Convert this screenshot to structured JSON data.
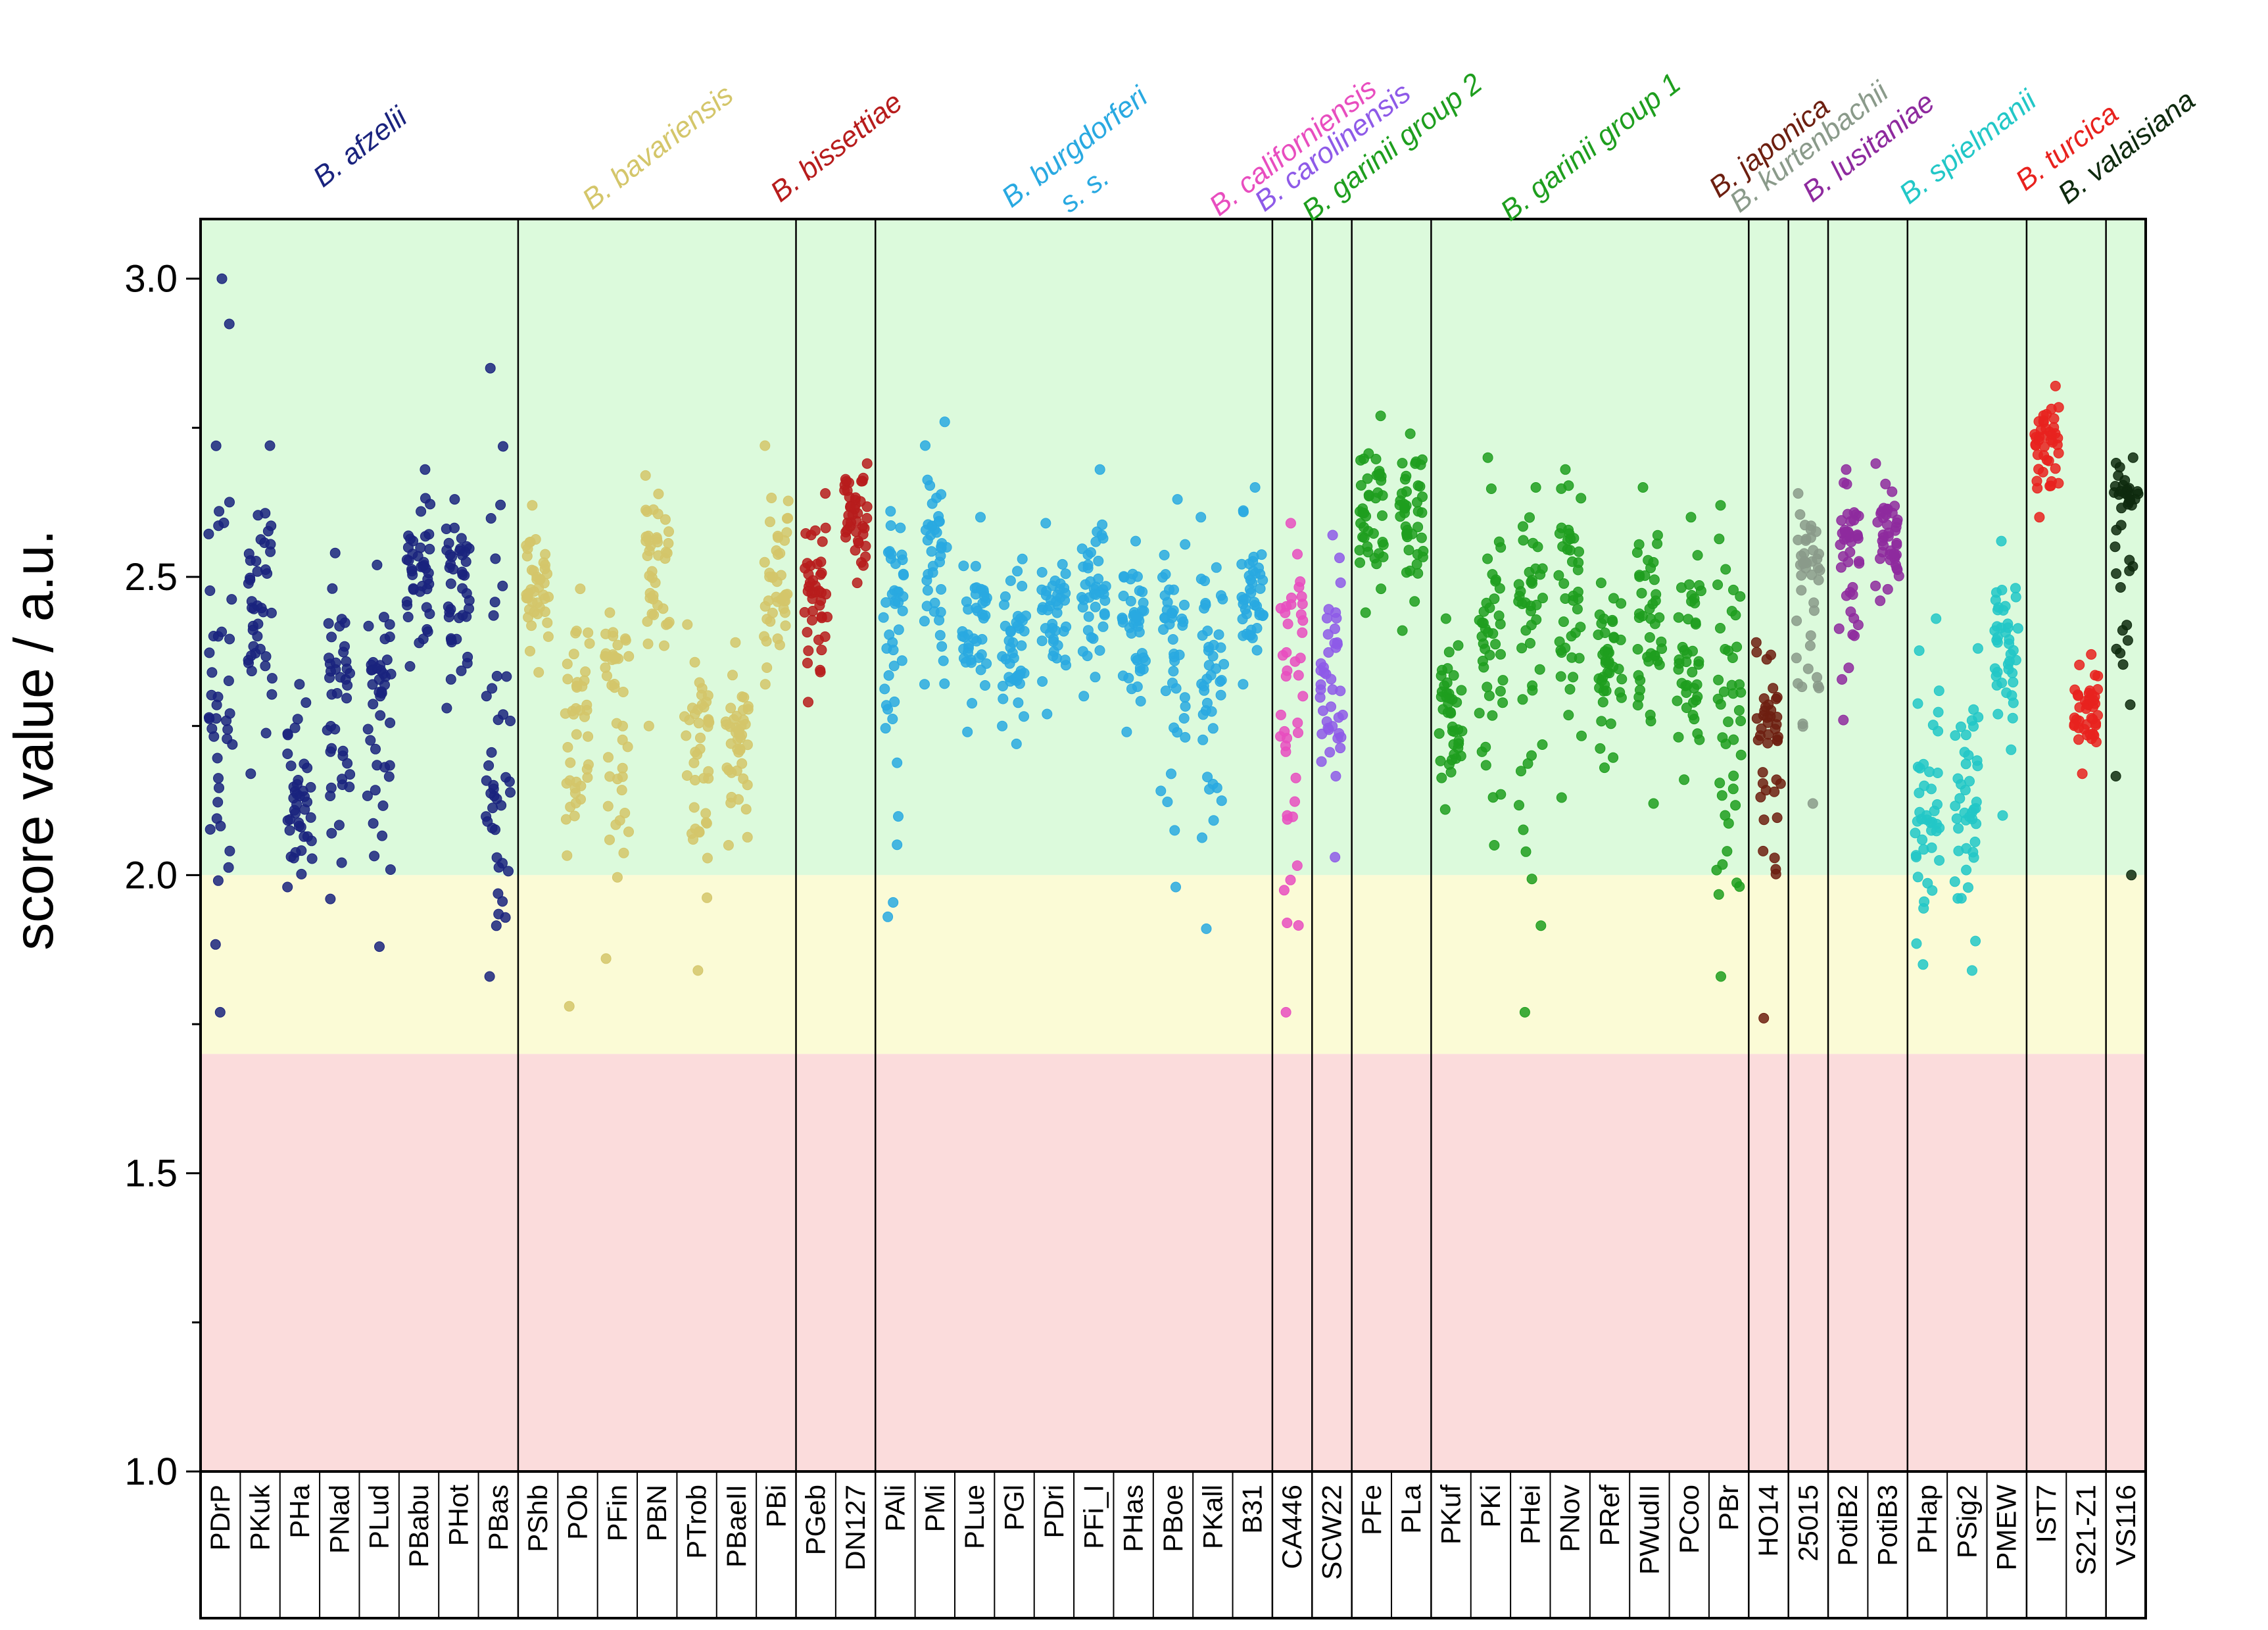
{
  "chart_data": {
    "type": "scatter",
    "title": "",
    "xlabel": "",
    "ylabel": "score value / a.u.",
    "ylim": [
      1.0,
      3.1
    ],
    "y_ticks": [
      {
        "value": 1.0,
        "label": "1.0"
      },
      {
        "value": 1.5,
        "label": "1.5"
      },
      {
        "value": 2.0,
        "label": "2.0"
      },
      {
        "value": 2.5,
        "label": "2.5"
      },
      {
        "value": 3.0,
        "label": "3.0"
      }
    ],
    "background_bands": [
      {
        "from": 2.0,
        "to": 3.1,
        "color": "#dcfadc"
      },
      {
        "from": 1.7,
        "to": 2.0,
        "color": "#fbfbd6"
      },
      {
        "from": 1.0,
        "to": 1.7,
        "color": "#fbdcdc"
      }
    ],
    "categories": [
      "PDrP",
      "PKuk",
      "PHa",
      "PNad",
      "PLud",
      "PBabu",
      "PHot",
      "PBas",
      "PShb",
      "POb",
      "PFin",
      "PBN",
      "PTrob",
      "PBaeII",
      "PBi",
      "PGeb",
      "DN127",
      "PAli",
      "PMi",
      "PLue",
      "PGl",
      "PDri",
      "PFi_I",
      "PHas",
      "PBoe",
      "PKall",
      "B31",
      "CA446",
      "SCW22",
      "PFe",
      "PLa",
      "PKuf",
      "PKi",
      "PHei",
      "PNov",
      "PRef",
      "PWudII",
      "PCoo",
      "PBr",
      "HO14",
      "25015",
      "PotiB2",
      "PotiB3",
      "PHap",
      "PSig2",
      "PMEW",
      "IST7",
      "S21-Z1",
      "VS116"
    ],
    "groups": [
      {
        "name": "B. afzelii",
        "line2": "",
        "color": "#1a237e",
        "members": [
          "PDrP",
          "PKuk",
          "PHa",
          "PNad",
          "PLud",
          "PBabu",
          "PHot",
          "PBas"
        ]
      },
      {
        "name": "B. bavariensis",
        "line2": "",
        "color": "#d4c66a",
        "members": [
          "PShb",
          "POb",
          "PFin",
          "PBN",
          "PTrob",
          "PBaeII",
          "PBi"
        ]
      },
      {
        "name": "B. bissettiae",
        "line2": "",
        "color": "#b71c1c",
        "members": [
          "PGeb",
          "DN127"
        ]
      },
      {
        "name": "B. burgdorferi",
        "line2": "s. s.",
        "color": "#29a9e1",
        "members": [
          "PAli",
          "PMi",
          "PLue",
          "PGl",
          "PDri",
          "PFi_I",
          "PHas",
          "PBoe",
          "PKall",
          "B31"
        ]
      },
      {
        "name": "B. californiensis",
        "line2": "",
        "color": "#e84dbf",
        "members": [
          "CA446"
        ]
      },
      {
        "name": "B. carolinensis",
        "line2": "",
        "color": "#8e5ae8",
        "members": [
          "SCW22"
        ]
      },
      {
        "name": "B. garinii group 2",
        "line2": "",
        "color": "#1e9e1e",
        "members": [
          "PFe",
          "PLa"
        ]
      },
      {
        "name": "B. garinii group 1",
        "line2": "",
        "color": "#1e9e1e",
        "members": [
          "PKuf",
          "PKi",
          "PHei",
          "PNov",
          "PRef",
          "PWudII",
          "PCoo",
          "PBr"
        ]
      },
      {
        "name": "B. japonica",
        "line2": "",
        "color": "#6d1f10",
        "members": [
          "HO14"
        ]
      },
      {
        "name": "B. kurtenbachii",
        "line2": "",
        "color": "#8a9a8a",
        "members": [
          "25015"
        ]
      },
      {
        "name": "B. lusitaniae",
        "line2": "",
        "color": "#8e2a9e",
        "members": [
          "PotiB2",
          "PotiB3"
        ]
      },
      {
        "name": "B. spielmanii",
        "line2": "",
        "color": "#22c7c7",
        "members": [
          "PHap",
          "PSig2",
          "PMEW"
        ]
      },
      {
        "name": "B. turcica",
        "line2": "",
        "color": "#e8221e",
        "members": [
          "IST7",
          "S21-Z1"
        ]
      },
      {
        "name": "B. valaisiana",
        "line2": "",
        "color": "#0e2a0e",
        "members": [
          "VS116"
        ]
      }
    ],
    "series": [
      {
        "name": "PDrP",
        "median": 2.38,
        "min": 1.77,
        "max": 3.0
      },
      {
        "name": "PKuk",
        "median": 2.45,
        "min": 2.17,
        "max": 2.72
      },
      {
        "name": "PHa",
        "median": 2.14,
        "min": 1.98,
        "max": 2.32
      },
      {
        "name": "PNad",
        "median": 2.3,
        "min": 1.96,
        "max": 2.54
      },
      {
        "name": "PLud",
        "median": 2.3,
        "min": 1.88,
        "max": 2.52
      },
      {
        "name": "PBabu",
        "median": 2.5,
        "min": 2.35,
        "max": 2.68
      },
      {
        "name": "PHot",
        "median": 2.5,
        "min": 2.28,
        "max": 2.63
      },
      {
        "name": "PBas",
        "median": 2.18,
        "min": 1.83,
        "max": 2.85
      },
      {
        "name": "PShb",
        "median": 2.48,
        "min": 2.34,
        "max": 2.62
      },
      {
        "name": "POb",
        "median": 2.26,
        "min": 1.78,
        "max": 2.48
      },
      {
        "name": "PFin",
        "median": 2.36,
        "min": 1.86,
        "max": 2.44
      },
      {
        "name": "PBN",
        "median": 2.52,
        "min": 2.25,
        "max": 2.67
      },
      {
        "name": "PTrob",
        "median": 2.24,
        "min": 1.84,
        "max": 2.42
      },
      {
        "name": "PBaeII",
        "median": 2.22,
        "min": 2.05,
        "max": 2.39
      },
      {
        "name": "PBi",
        "median": 2.5,
        "min": 2.32,
        "max": 2.72
      },
      {
        "name": "PGeb",
        "median": 2.47,
        "min": 2.29,
        "max": 2.64
      },
      {
        "name": "DN127",
        "median": 2.6,
        "min": 2.49,
        "max": 2.69
      },
      {
        "name": "PAli",
        "median": 2.45,
        "min": 1.93,
        "max": 2.61
      },
      {
        "name": "PMi",
        "median": 2.55,
        "min": 2.32,
        "max": 2.76
      },
      {
        "name": "PLue",
        "median": 2.4,
        "min": 2.24,
        "max": 2.6
      },
      {
        "name": "PGl",
        "median": 2.38,
        "min": 2.22,
        "max": 2.53
      },
      {
        "name": "PDri",
        "median": 2.44,
        "min": 2.27,
        "max": 2.59
      },
      {
        "name": "PFi_I",
        "median": 2.5,
        "min": 2.3,
        "max": 2.68
      },
      {
        "name": "PHas",
        "median": 2.42,
        "min": 2.24,
        "max": 2.56
      },
      {
        "name": "PBoe",
        "median": 2.42,
        "min": 1.98,
        "max": 2.63
      },
      {
        "name": "PKall",
        "median": 2.35,
        "min": 1.91,
        "max": 2.6
      },
      {
        "name": "B31",
        "median": 2.47,
        "min": 2.32,
        "max": 2.65
      },
      {
        "name": "CA446",
        "median": 2.35,
        "min": 1.77,
        "max": 2.59
      },
      {
        "name": "SCW22",
        "median": 2.32,
        "min": 2.03,
        "max": 2.57
      },
      {
        "name": "PFe",
        "median": 2.62,
        "min": 2.44,
        "max": 2.77
      },
      {
        "name": "PLa",
        "median": 2.62,
        "min": 2.41,
        "max": 2.74
      },
      {
        "name": "PKuf",
        "median": 2.28,
        "min": 2.11,
        "max": 2.43
      },
      {
        "name": "PKi",
        "median": 2.38,
        "min": 2.05,
        "max": 2.7
      },
      {
        "name": "PHei",
        "median": 2.45,
        "min": 1.77,
        "max": 2.65
      },
      {
        "name": "PNov",
        "median": 2.52,
        "min": 2.13,
        "max": 2.68
      },
      {
        "name": "PRef",
        "median": 2.35,
        "min": 2.18,
        "max": 2.49
      },
      {
        "name": "PWudII",
        "median": 2.42,
        "min": 2.12,
        "max": 2.65
      },
      {
        "name": "PCoo",
        "median": 2.38,
        "min": 2.16,
        "max": 2.6
      },
      {
        "name": "PBr",
        "median": 2.3,
        "min": 1.83,
        "max": 2.62
      },
      {
        "name": "HO14",
        "median": 2.22,
        "min": 1.76,
        "max": 2.39
      },
      {
        "name": "25015",
        "median": 2.5,
        "min": 2.12,
        "max": 2.64
      },
      {
        "name": "PotiB2",
        "median": 2.56,
        "min": 2.26,
        "max": 2.68
      },
      {
        "name": "PotiB3",
        "median": 2.56,
        "min": 2.46,
        "max": 2.69
      },
      {
        "name": "PHap",
        "median": 2.1,
        "min": 1.85,
        "max": 2.43
      },
      {
        "name": "PSig2",
        "median": 2.12,
        "min": 1.84,
        "max": 2.38
      },
      {
        "name": "PMEW",
        "median": 2.4,
        "min": 2.1,
        "max": 2.56
      },
      {
        "name": "IST7",
        "median": 2.73,
        "min": 2.6,
        "max": 2.82
      },
      {
        "name": "S21-Z1",
        "median": 2.27,
        "min": 2.17,
        "max": 2.37
      },
      {
        "name": "VS116",
        "median": 2.62,
        "min": 2.0,
        "max": 2.7
      }
    ]
  }
}
